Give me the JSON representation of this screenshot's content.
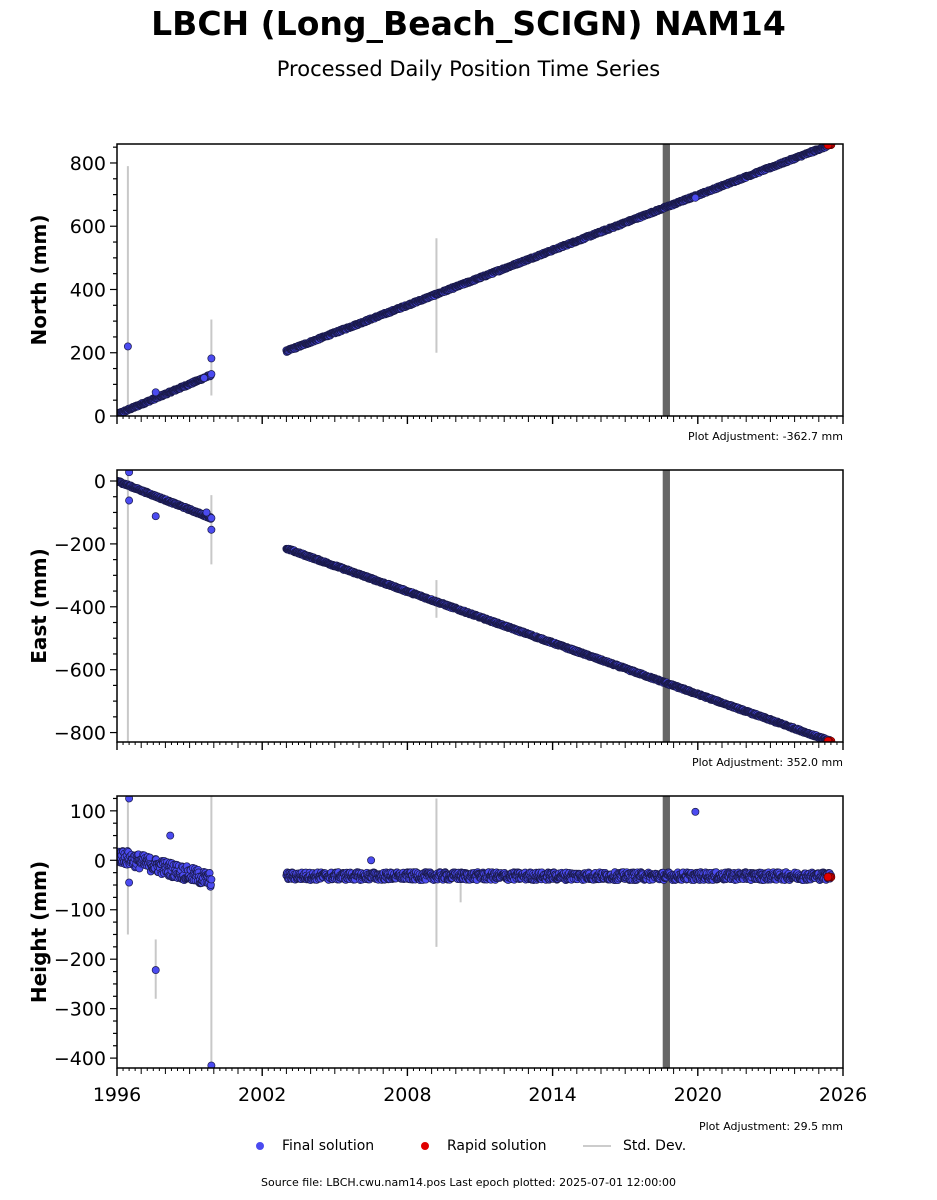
{
  "title": "LBCH (Long_Beach_SCIGN) NAM14",
  "subtitle": "Processed Daily Position Time Series",
  "legend": {
    "final": "Final solution",
    "rapid": "Rapid solution",
    "std": "Std. Dev."
  },
  "footer": "Source file: LBCH.cwu.nam14.pos  Last epoch plotted: 2025-07-01 12:00:00",
  "colors": {
    "final": "#4b4bf0",
    "rapid": "#e00000",
    "std": "#c8c8c8",
    "band": "#666666"
  },
  "chart_data": [
    {
      "type": "scatter",
      "ylabel": "North (mm)",
      "adjustment": "Plot Adjustment: -362.7 mm",
      "xlim": [
        1996,
        2026
      ],
      "ylim": [
        0,
        860
      ],
      "yticks": [
        0,
        200,
        400,
        600,
        800
      ],
      "band": [
        2018.55,
        2018.85
      ],
      "segments": [
        {
          "x0": 1996.0,
          "y0": 5,
          "x1": 1999.9,
          "y1": 130
        },
        {
          "x0": 2003.0,
          "y0": 205,
          "x1": 2025.5,
          "y1": 858
        }
      ],
      "outliers": [
        [
          1996.45,
          220
        ],
        [
          1997.6,
          75
        ],
        [
          1999.6,
          120
        ],
        [
          1999.9,
          182
        ],
        [
          2019.9,
          690
        ]
      ],
      "errorbars": [
        [
          1996.45,
          20,
          790
        ],
        [
          1999.9,
          65,
          305
        ],
        [
          2009.2,
          200,
          562
        ]
      ]
    },
    {
      "type": "scatter",
      "ylabel": "East (mm)",
      "adjustment": "Plot Adjustment: 352.0 mm",
      "xlim": [
        1996,
        2026
      ],
      "ylim": [
        -830,
        35
      ],
      "yticks": [
        -800,
        -600,
        -400,
        -200,
        0
      ],
      "band": [
        2018.55,
        2018.85
      ],
      "segments": [
        {
          "x0": 1996.0,
          "y0": 0,
          "x1": 1999.9,
          "y1": -118
        },
        {
          "x0": 2003.0,
          "y0": -215,
          "x1": 2025.5,
          "y1": -828
        }
      ],
      "outliers": [
        [
          1996.5,
          28
        ],
        [
          1996.5,
          -62
        ],
        [
          1997.6,
          -112
        ],
        [
          1999.7,
          -100
        ],
        [
          1999.9,
          -155
        ]
      ],
      "errorbars": [
        [
          1996.45,
          -830,
          35
        ],
        [
          1999.9,
          -265,
          -45
        ],
        [
          2009.2,
          -435,
          -315
        ]
      ]
    },
    {
      "type": "scatter",
      "ylabel": "Height (mm)",
      "adjustment": "Plot Adjustment: 29.5 mm",
      "xlim": [
        1996,
        2026
      ],
      "ylim": [
        -420,
        130
      ],
      "yticks": [
        -400,
        -300,
        -200,
        -100,
        0,
        100
      ],
      "band": [
        2018.55,
        2018.85
      ],
      "segments": [
        {
          "x0": 1996.0,
          "y0": 10,
          "x1": 1999.9,
          "y1": -40,
          "noise": 15
        },
        {
          "x0": 2003.0,
          "y0": -32,
          "x1": 2025.5,
          "y1": -32,
          "noise": 8
        }
      ],
      "outliers": [
        [
          1996.5,
          125
        ],
        [
          1996.5,
          -45
        ],
        [
          1997.6,
          -222
        ],
        [
          1998.2,
          50
        ],
        [
          2006.5,
          0
        ],
        [
          2019.9,
          98
        ],
        [
          1999.9,
          -415
        ]
      ],
      "errorbars": [
        [
          1996.45,
          -150,
          120
        ],
        [
          1997.6,
          -280,
          -160
        ],
        [
          1999.9,
          -420,
          130
        ],
        [
          2009.2,
          -175,
          125
        ],
        [
          2010.2,
          -85,
          -20
        ]
      ]
    }
  ],
  "x_axis": {
    "ticks": [
      1996,
      2002,
      2008,
      2014,
      2020,
      2026
    ]
  }
}
